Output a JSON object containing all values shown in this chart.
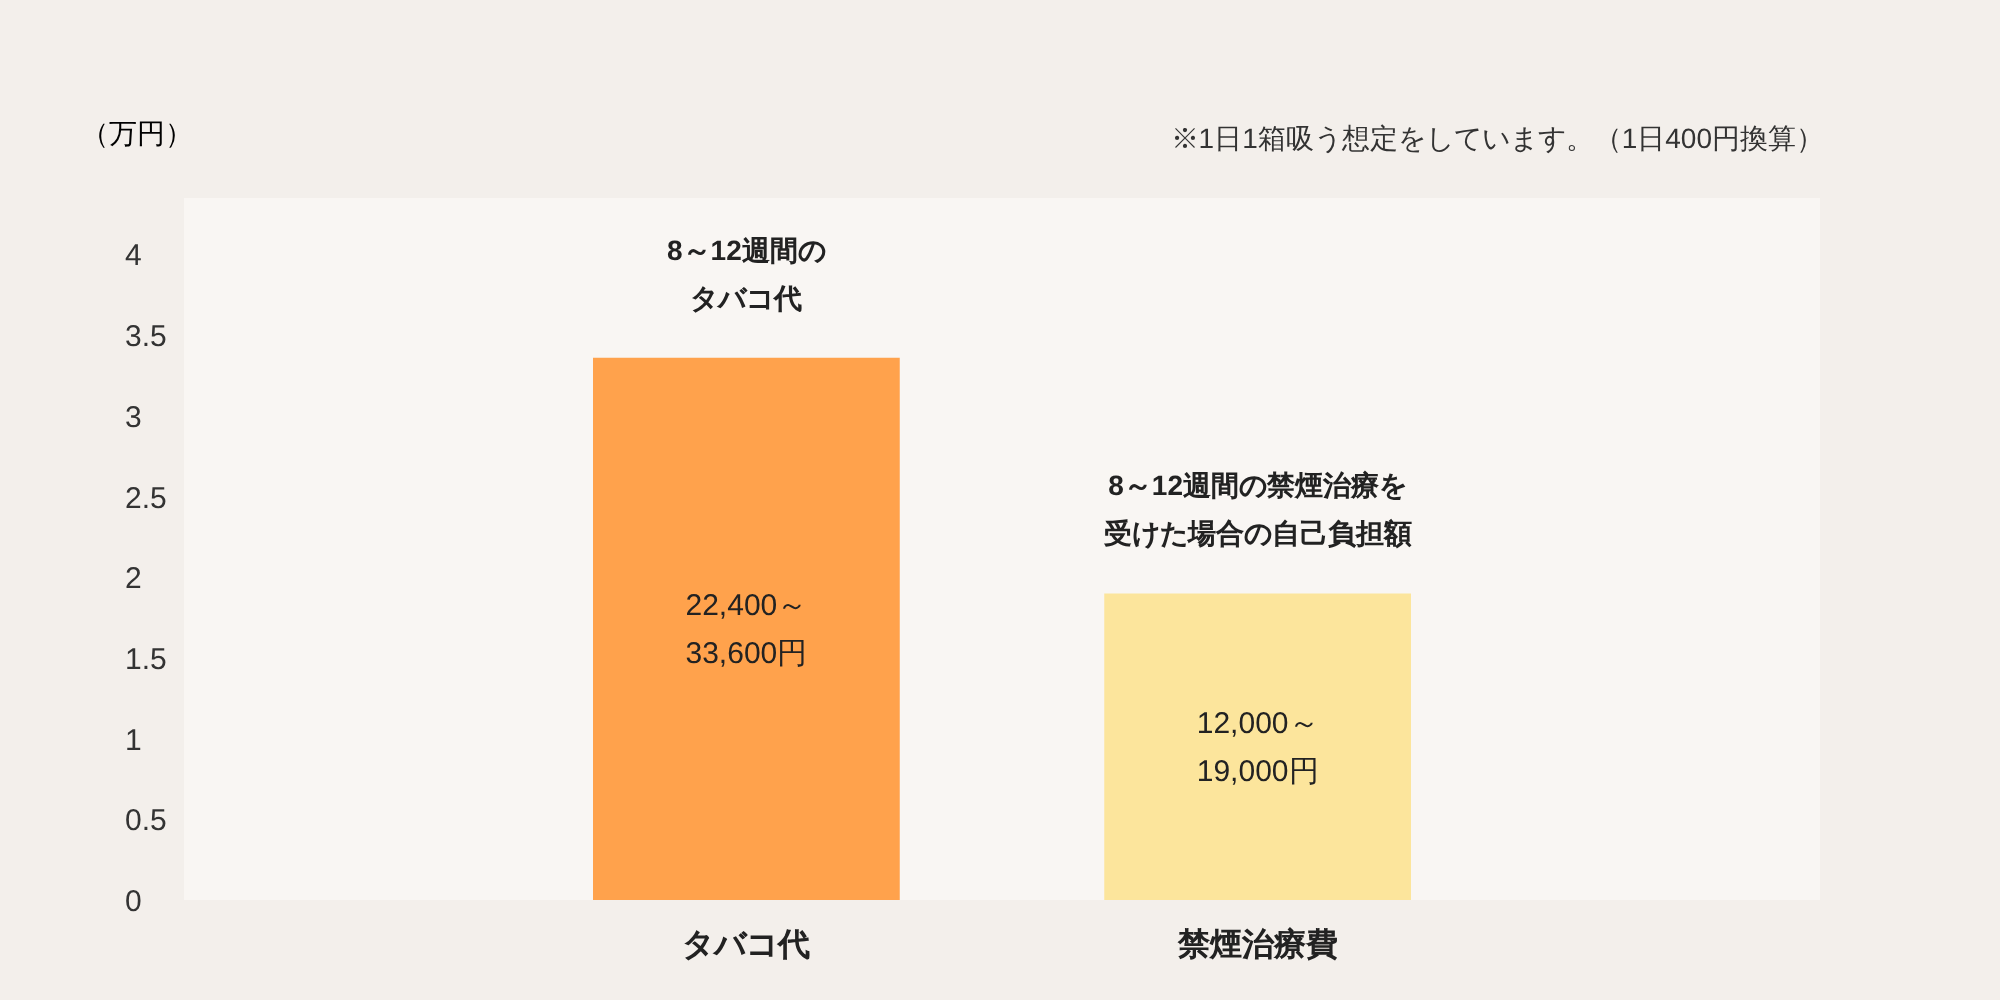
{
  "chart_data": {
    "type": "bar",
    "categories": [
      "タバコ代",
      "禁煙治療費"
    ],
    "values": [
      3.36,
      1.9
    ],
    "colors": [
      "#ffa24c",
      "#fce59c"
    ],
    "ylabel": "（万円）",
    "ylim": [
      0,
      4.35
    ],
    "yticks": [
      0,
      0.5,
      1,
      1.5,
      2,
      2.5,
      3,
      3.5,
      4
    ],
    "grid": false,
    "annotations": [
      "※1日1箱吸う想定をしています。（1日400円換算）",
      "8～12週間の",
      "タバコ代",
      "8～12週間の禁煙治療を",
      "受けた場合の自己負担額",
      "22,400～",
      "33,600円",
      "12,000～",
      "19,000円"
    ]
  }
}
